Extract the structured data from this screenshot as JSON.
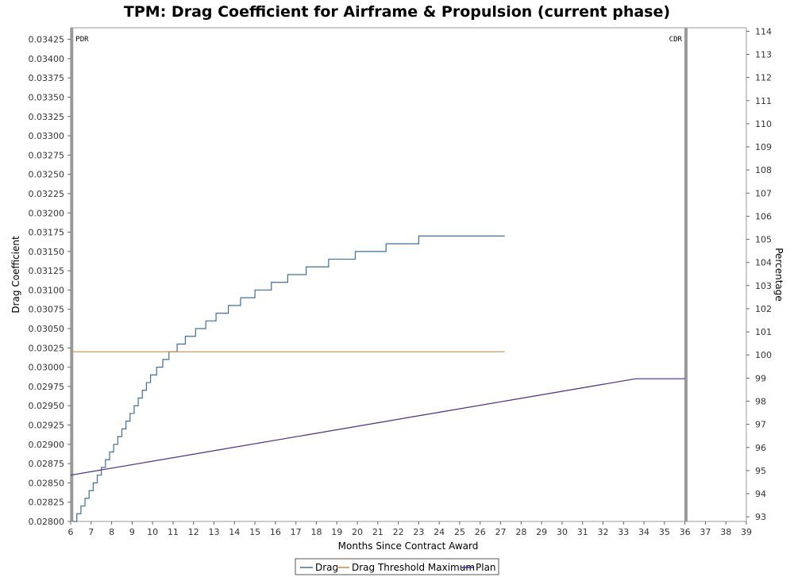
{
  "chart_data": {
    "type": "line",
    "title": "TPM: Drag Coefficient for Airframe & Propulsion (current phase)",
    "xlabel": "Months Since Contract Award",
    "ylabel": "Drag Coefficient",
    "y2label": "Percentage",
    "xlim": [
      6,
      39
    ],
    "ylim": [
      0.028,
      0.0344
    ],
    "y2lim": [
      92.8,
      114.15
    ],
    "x_ticks": [
      6,
      7,
      8,
      9,
      10,
      11,
      12,
      13,
      14,
      15,
      16,
      17,
      18,
      19,
      20,
      21,
      22,
      23,
      24,
      25,
      26,
      27,
      28,
      29,
      30,
      31,
      32,
      33,
      34,
      35,
      36,
      37,
      38,
      39
    ],
    "y_ticks": [
      "0.02800",
      "0.02825",
      "0.02850",
      "0.02875",
      "0.02900",
      "0.02925",
      "0.02950",
      "0.02975",
      "0.03000",
      "0.03025",
      "0.03050",
      "0.03075",
      "0.03100",
      "0.03125",
      "0.03150",
      "0.03175",
      "0.03200",
      "0.03225",
      "0.03250",
      "0.03275",
      "0.03300",
      "0.03325",
      "0.03350",
      "0.03375",
      "0.03400",
      "0.03425"
    ],
    "y2_ticks": [
      "93",
      "94",
      "95",
      "96",
      "97",
      "98",
      "99",
      "100",
      "101",
      "102",
      "103",
      "104",
      "105",
      "106",
      "107",
      "108",
      "109",
      "110",
      "111",
      "112",
      "113",
      "114"
    ],
    "milestones": [
      {
        "label": "PDR",
        "x": 6.05
      },
      {
        "label": "CDR",
        "x": 36.05
      }
    ],
    "legend_position": "bottom-center",
    "grid": false,
    "series": [
      {
        "name": "Drag",
        "color": "#3f6f96",
        "style": "step",
        "x": [
          6.1,
          6.3,
          6.5,
          6.7,
          6.9,
          7.1,
          7.3,
          7.5,
          7.7,
          7.9,
          8.1,
          8.3,
          8.5,
          8.7,
          8.9,
          9.1,
          9.3,
          9.5,
          9.7,
          9.9,
          10.2,
          10.5,
          10.8,
          11.2,
          11.6,
          12.1,
          12.6,
          13.1,
          13.7,
          14.3,
          15.0,
          15.8,
          16.6,
          17.5,
          18.6,
          19.9,
          21.4,
          23.0,
          27.2
        ],
        "y": [
          0.028,
          0.0281,
          0.0282,
          0.0283,
          0.0284,
          0.0285,
          0.0286,
          0.0287,
          0.0288,
          0.0289,
          0.029,
          0.0291,
          0.0292,
          0.0293,
          0.0294,
          0.0295,
          0.0296,
          0.0297,
          0.0298,
          0.0299,
          0.03,
          0.0301,
          0.0302,
          0.0303,
          0.0304,
          0.0305,
          0.0306,
          0.0307,
          0.0308,
          0.0309,
          0.031,
          0.0311,
          0.0312,
          0.0313,
          0.0314,
          0.0315,
          0.0316,
          0.0317,
          0.0317
        ]
      },
      {
        "name": "Drag Threshold Maximum",
        "color": "#c28f4a",
        "style": "line",
        "x": [
          6.0,
          27.2
        ],
        "y": [
          0.0302,
          0.0302
        ]
      },
      {
        "name": "Plan",
        "color": "#4b2a86",
        "style": "line",
        "x": [
          6.0,
          33.6,
          36.0
        ],
        "y": [
          0.0286,
          0.02985,
          0.02985
        ]
      }
    ]
  }
}
